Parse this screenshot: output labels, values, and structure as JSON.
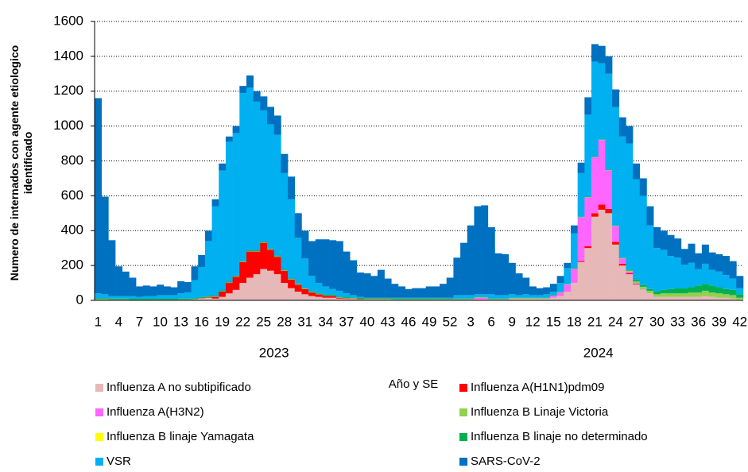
{
  "chart_data": {
    "type": "stacked_bar",
    "y_label": "Numero de internados con agente etiologico identificado",
    "x_label": "Año y SE",
    "ylim": [
      0,
      1600
    ],
    "yticks": [
      0,
      200,
      400,
      600,
      800,
      1000,
      1200,
      1400,
      1600
    ],
    "grid": true,
    "groups": [
      {
        "label": "2023",
        "categories": [
          "1",
          null,
          null,
          "4",
          null,
          null,
          "7",
          null,
          null,
          "10",
          null,
          null,
          "13",
          null,
          null,
          "16",
          null,
          null,
          "19",
          null,
          null,
          "22",
          null,
          null,
          "25",
          null,
          null,
          "28",
          null,
          null,
          "31",
          null,
          null,
          "34",
          null,
          null,
          "37",
          null,
          null,
          "40",
          null,
          null,
          "43",
          null,
          null,
          "46",
          null,
          null,
          "49",
          null,
          null,
          "52"
        ]
      },
      {
        "label": "2024",
        "categories": [
          null,
          null,
          "3",
          null,
          null,
          "6",
          null,
          null,
          "9",
          null,
          null,
          "12",
          null,
          null,
          "15",
          null,
          null,
          "18",
          null,
          null,
          "21",
          null,
          null,
          "24",
          null,
          null,
          "27",
          null,
          null,
          "30",
          null,
          null,
          "33",
          null,
          null,
          "36",
          null,
          null,
          "39",
          null,
          null,
          "42"
        ]
      }
    ],
    "series": [
      {
        "name": "Influenza A no subtipificado",
        "color": "#e6b8b7",
        "values": [
          5,
          5,
          3,
          3,
          3,
          2,
          2,
          2,
          2,
          2,
          2,
          2,
          3,
          3,
          5,
          10,
          15,
          10,
          20,
          40,
          60,
          100,
          130,
          150,
          180,
          170,
          150,
          100,
          70,
          50,
          35,
          25,
          20,
          15,
          15,
          10,
          8,
          8,
          5,
          5,
          5,
          5,
          5,
          4,
          4,
          4,
          4,
          4,
          4,
          4,
          4,
          4,
          5,
          5,
          5,
          5,
          5,
          5,
          5,
          5,
          10,
          10,
          10,
          10,
          10,
          10,
          15,
          25,
          50,
          100,
          220,
          300,
          480,
          520,
          500,
          320,
          200,
          150,
          90,
          60,
          40,
          20,
          20,
          20,
          20,
          20,
          20,
          20,
          25,
          20,
          15,
          15,
          10,
          5
        ]
      },
      {
        "name": "Influenza A(H1N1)pdm09",
        "color": "#ff0000",
        "values": [
          0,
          0,
          0,
          0,
          0,
          0,
          0,
          0,
          0,
          0,
          0,
          0,
          0,
          0,
          0,
          2,
          3,
          10,
          30,
          60,
          75,
          120,
          150,
          130,
          150,
          120,
          100,
          70,
          50,
          40,
          30,
          20,
          15,
          10,
          10,
          5,
          3,
          2,
          2,
          1,
          1,
          1,
          1,
          0,
          0,
          0,
          0,
          0,
          0,
          0,
          0,
          0,
          0,
          0,
          0,
          0,
          0,
          0,
          0,
          0,
          0,
          0,
          0,
          0,
          0,
          0,
          0,
          0,
          0,
          0,
          5,
          10,
          20,
          30,
          25,
          15,
          10,
          5,
          3,
          0,
          0,
          0,
          0,
          0,
          0,
          0,
          0,
          0,
          0,
          0,
          0,
          0,
          0,
          0
        ]
      },
      {
        "name": "Influenza A(H3N2)",
        "color": "#ff66ff",
        "values": [
          0,
          0,
          0,
          0,
          0,
          0,
          0,
          0,
          0,
          0,
          0,
          0,
          0,
          0,
          0,
          0,
          0,
          0,
          0,
          0,
          0,
          0,
          0,
          0,
          0,
          0,
          0,
          0,
          0,
          0,
          0,
          0,
          0,
          0,
          0,
          0,
          0,
          0,
          0,
          0,
          0,
          0,
          0,
          0,
          0,
          0,
          0,
          0,
          0,
          0,
          0,
          0,
          0,
          0,
          0,
          10,
          10,
          0,
          0,
          0,
          0,
          0,
          0,
          0,
          0,
          0,
          10,
          20,
          40,
          80,
          250,
          280,
          320,
          370,
          220,
          90,
          30,
          10,
          5,
          3,
          0,
          0,
          0,
          0,
          0,
          0,
          0,
          0,
          0,
          0,
          0,
          0,
          0,
          0
        ]
      },
      {
        "name": "Influenza B Linaje Victoria",
        "color": "#92d050",
        "values": [
          2,
          2,
          2,
          2,
          2,
          2,
          2,
          2,
          2,
          2,
          2,
          2,
          2,
          2,
          2,
          2,
          2,
          2,
          2,
          2,
          2,
          2,
          2,
          2,
          2,
          2,
          2,
          2,
          2,
          2,
          2,
          2,
          2,
          2,
          2,
          2,
          2,
          2,
          2,
          2,
          2,
          2,
          2,
          2,
          2,
          2,
          2,
          2,
          2,
          2,
          2,
          2,
          2,
          2,
          2,
          2,
          2,
          2,
          2,
          2,
          2,
          2,
          2,
          2,
          2,
          2,
          2,
          2,
          2,
          2,
          2,
          2,
          2,
          2,
          2,
          2,
          2,
          5,
          10,
          15,
          15,
          15,
          20,
          20,
          20,
          20,
          25,
          25,
          30,
          25,
          25,
          20,
          20,
          10
        ]
      },
      {
        "name": "Influenza B linaje Yamagata",
        "color": "#ffff00",
        "values": [
          0,
          0,
          0,
          0,
          0,
          0,
          0,
          0,
          0,
          0,
          0,
          0,
          0,
          0,
          0,
          0,
          0,
          0,
          0,
          0,
          0,
          0,
          0,
          0,
          0,
          0,
          0,
          0,
          0,
          0,
          0,
          0,
          0,
          0,
          0,
          0,
          0,
          0,
          0,
          0,
          0,
          0,
          0,
          0,
          0,
          0,
          0,
          0,
          0,
          0,
          0,
          0,
          0,
          0,
          0,
          0,
          0,
          0,
          0,
          0,
          0,
          0,
          0,
          0,
          0,
          0,
          0,
          0,
          0,
          0,
          0,
          0,
          0,
          0,
          0,
          0,
          0,
          0,
          0,
          0,
          0,
          0,
          0,
          0,
          0,
          0,
          0,
          0,
          0,
          0,
          0,
          0,
          0,
          0
        ]
      },
      {
        "name": "Influenza B linaje no determinado",
        "color": "#00b050",
        "values": [
          5,
          5,
          5,
          5,
          5,
          5,
          5,
          5,
          5,
          5,
          5,
          5,
          5,
          5,
          5,
          5,
          5,
          5,
          5,
          5,
          5,
          5,
          5,
          5,
          5,
          5,
          5,
          5,
          5,
          5,
          5,
          5,
          5,
          5,
          5,
          5,
          5,
          5,
          5,
          5,
          5,
          5,
          5,
          5,
          5,
          5,
          5,
          5,
          5,
          5,
          5,
          5,
          3,
          3,
          3,
          3,
          3,
          3,
          3,
          3,
          3,
          3,
          3,
          3,
          3,
          3,
          3,
          3,
          3,
          3,
          3,
          3,
          3,
          3,
          3,
          3,
          3,
          5,
          10,
          10,
          10,
          15,
          20,
          25,
          30,
          30,
          30,
          40,
          40,
          40,
          35,
          30,
          30,
          20
        ]
      },
      {
        "name": "VSR",
        "color": "#00b0f0",
        "values": [
          28,
          23,
          15,
          15,
          15,
          16,
          11,
          16,
          16,
          21,
          21,
          21,
          30,
          35,
          103,
          171,
          315,
          513,
          688,
          803,
          818,
          963,
          933,
          853,
          753,
          713,
          693,
          553,
          453,
          263,
          168,
          88,
          58,
          48,
          33,
          33,
          22,
          13,
          6,
          2,
          2,
          2,
          2,
          4,
          4,
          4,
          4,
          4,
          4,
          4,
          4,
          4,
          20,
          20,
          20,
          15,
          15,
          25,
          20,
          20,
          20,
          15,
          20,
          15,
          15,
          20,
          20,
          50,
          90,
          200,
          250,
          470,
          545,
          435,
          550,
          680,
          695,
          725,
          577,
          512,
          365,
          250,
          230,
          190,
          175,
          135,
          140,
          95,
          115,
          90,
          90,
          80,
          65,
          35
        ]
      },
      {
        "name": "SARS-CoV-2",
        "color": "#0070c0",
        "values": [
          1120,
          560,
          320,
          170,
          140,
          105,
          60,
          60,
          55,
          60,
          50,
          45,
          70,
          60,
          80,
          70,
          60,
          40,
          40,
          30,
          40,
          40,
          70,
          60,
          80,
          100,
          110,
          110,
          130,
          140,
          160,
          200,
          250,
          270,
          280,
          285,
          240,
          200,
          140,
          140,
          125,
          160,
          110,
          80,
          65,
          50,
          55,
          55,
          65,
          65,
          80,
          115,
          215,
          300,
          400,
          505,
          510,
          385,
          240,
          235,
          180,
          125,
          95,
          50,
          40,
          40,
          45,
          40,
          30,
          45,
          60,
          100,
          100,
          100,
          100,
          100,
          110,
          100,
          90,
          100,
          110,
          120,
          110,
          120,
          110,
          90,
          110,
          90,
          110,
          100,
          100,
          110,
          100,
          70
        ]
      }
    ]
  }
}
